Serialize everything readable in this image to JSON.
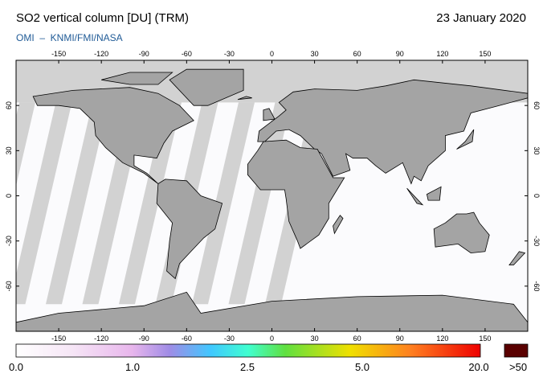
{
  "header": {
    "title": "SO2 vertical column [DU] (TRM)",
    "date": "23 January 2020",
    "subtitle": "OMI  –  KNMI/FMI/NASA"
  },
  "map": {
    "lon_ticks": [
      -150,
      -120,
      -90,
      -60,
      -30,
      0,
      30,
      60,
      90,
      120,
      150
    ],
    "lat_ticks": [
      -60,
      -30,
      0,
      30,
      60
    ]
  },
  "colorbar": {
    "labels": [
      "0.0",
      "1.0",
      "2.5",
      "5.0",
      "20.0"
    ],
    "overflow_label": ">50"
  }
}
